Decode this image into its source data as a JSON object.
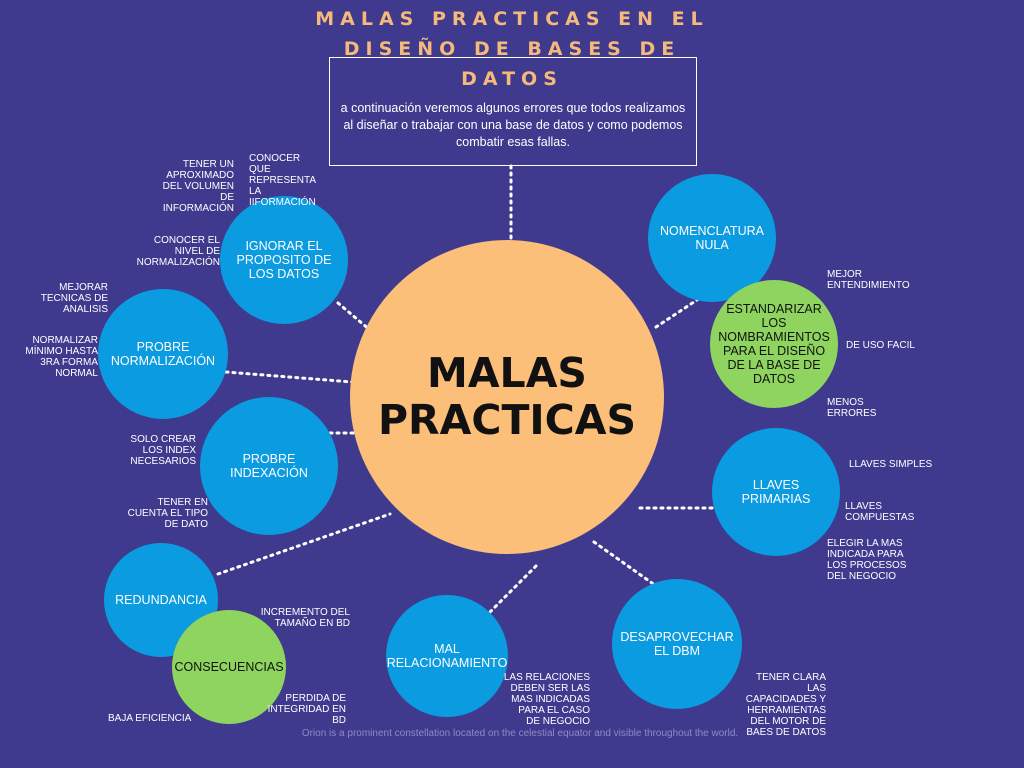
{
  "title": "MALAS PRACTICAS EN EL DISEÑO DE BASES DE DATOS",
  "intro": "a continuación veremos algunos errores que todos realizamos al diseñar o trabajar con una base de datos y como podemos combatir esas fallas.",
  "center": "MALAS PRACTICAS",
  "nodes": {
    "ignorar": "IGNORAR EL PROPOSITO DE LOS DATOS",
    "normalizacion": "PROBRE NORMALIZACIÓN",
    "indexacion": "PROBRE INDEXACIÓN",
    "redundancia": "REDUNDANCIA",
    "consecuencias": "CONSECUENCIAS",
    "mal_rel": "MAL RELACIONAMIENTO",
    "desaprovechar": "DESAPROVECHAR EL DBM",
    "llaves": "LLAVES PRIMARIAS",
    "nomenclatura": "NOMENCLATURA NULA",
    "estandarizar": "ESTANDARIZAR LOS NOMBRAMIENTOS PARA EL DISEÑO DE LA BASE DE DATOS"
  },
  "annotations": {
    "tener_aprox": "TENER UN APROXIMADO DEL VOLUMEN DE INFORMACIÓN",
    "conocer_que": "CONOCER QUE REPRESENTA LA IIFORMACIÓN",
    "conocer_nivel": "CONOCER EL NIVEL DE NORMALIZACIÓN",
    "mejorar_tec": "MEJORAR TECNICAS DE ANALISIS",
    "normalizar_min": "NORMALIZAR MÍNIMO HASTA 3RA FORMA NORMAL",
    "solo_crear": "SOLO CREAR LOS INDEX NECESARIOS",
    "tener_cuenta": "TENER EN CUENTA EL TIPO DE DATO",
    "incremento": "INCREMENTO DEL TAMAÑO EN BD",
    "perdida": "PERDIDA DE INTEGRIDAD EN BD",
    "baja": "BAJA EFICIENCIA",
    "relaciones": "LAS RELACIONES DEBEN SER LAS MAS INDICADAS PARA EL CASO DE NEGOCIO",
    "tener_clara": "TENER CLARA LAS CAPACIDADES Y HERRAMIENTAS DEL MOTOR DE BAES DE DATOS",
    "elegir": "ELEGIR LA MAS INDICADA PARA LOS PROCESOS DEL NEGOCIO",
    "llaves_simples": "LLAVES SIMPLES",
    "llaves_comp": "LLAVES COMPUESTAS",
    "mejor_ent": "MEJOR ENTENDIMIENTO",
    "uso_facil": "DE USO FACIL",
    "menos_err": "MENOS ERRORES"
  },
  "footer": "Orion is a prominent constellation located on the celestial equator and visible throughout the world.",
  "colors": {
    "background": "#3f3a8e",
    "center": "#fbbf79",
    "node": "#0a9be0",
    "accent_node": "#8ed45f",
    "title": "#f5b97a"
  }
}
